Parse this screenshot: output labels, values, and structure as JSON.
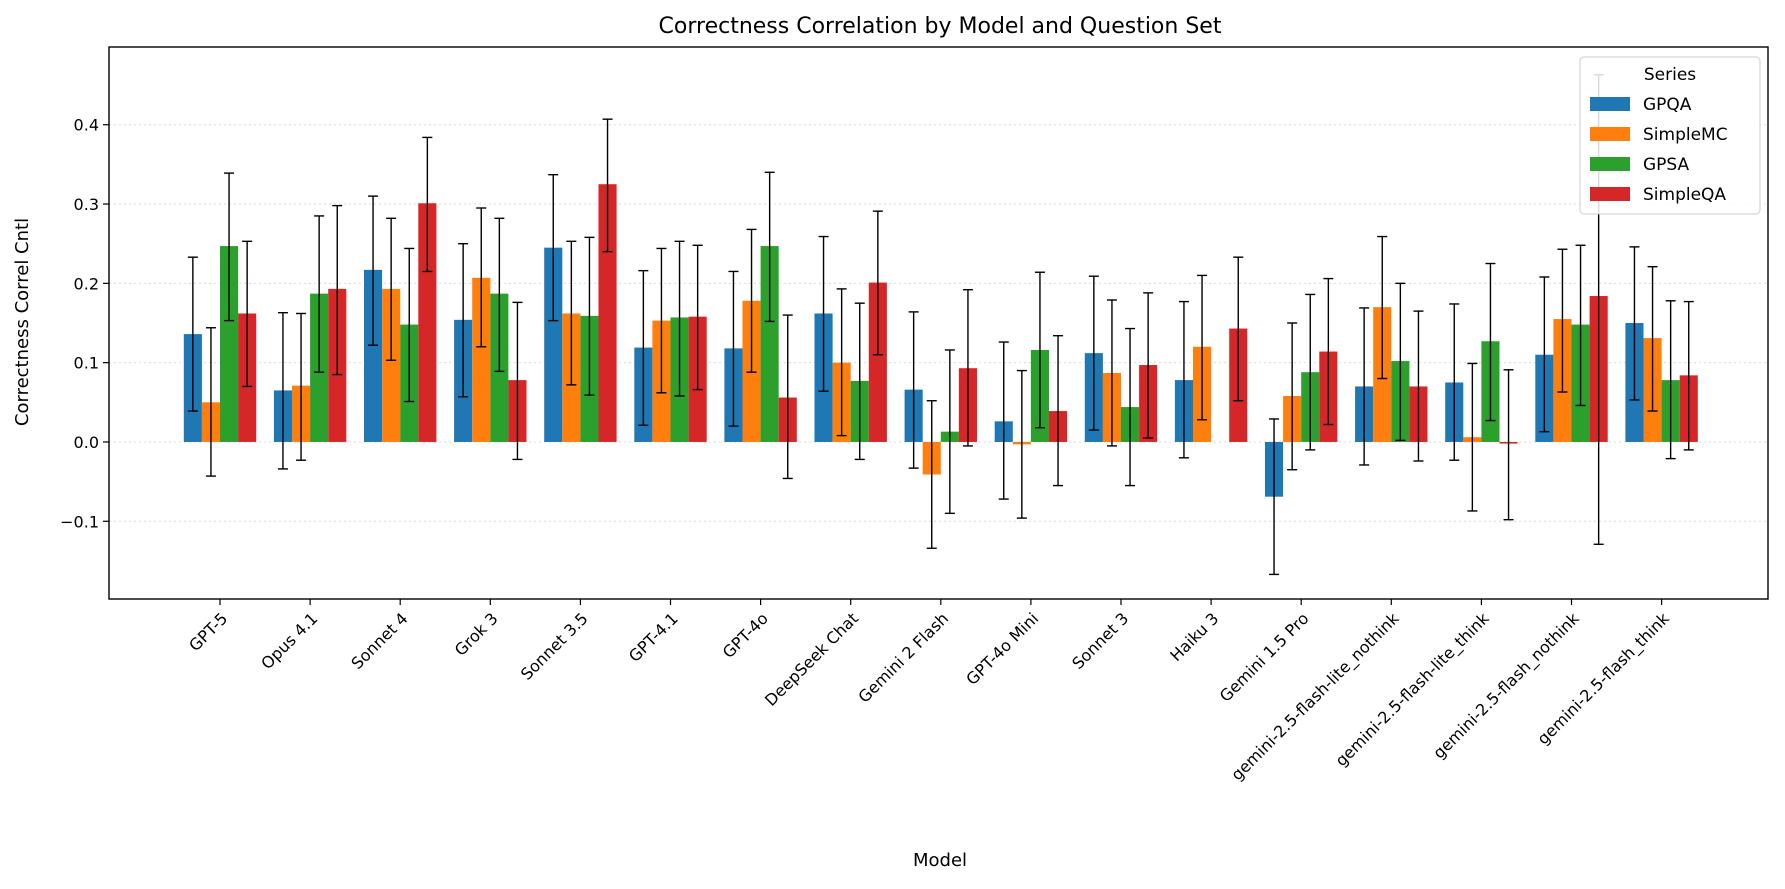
{
  "chart_data": {
    "type": "bar",
    "title": "Correctness Correlation by Model and Question Set",
    "xlabel": "Model",
    "ylabel": "Correctness Correl Cntl",
    "ylim": [
      -0.198,
      0.498
    ],
    "yticks": [
      -0.1,
      0.0,
      0.1,
      0.2,
      0.3,
      0.4
    ],
    "ytick_labels": [
      "−0.1",
      "0.0",
      "0.1",
      "0.2",
      "0.3",
      "0.4"
    ],
    "grid": "y-dotted",
    "legend": {
      "title": "Series",
      "placement": "top-right"
    },
    "categories": [
      "GPT-5",
      "Opus 4.1",
      "Sonnet 4",
      "Grok 3",
      "Sonnet 3.5",
      "GPT-4.1",
      "GPT-4o",
      "DeepSeek Chat",
      "Gemini 2 Flash",
      "GPT-4o Mini",
      "Sonnet 3",
      "Haiku 3",
      "Gemini 1.5 Pro",
      "gemini-2.5-flash-lite_nothink",
      "gemini-2.5-flash-lite_think",
      "gemini-2.5-flash_nothink",
      "gemini-2.5-flash_think"
    ],
    "series": [
      {
        "name": "GPQA",
        "color": "#1f77b4",
        "values": [
          0.136,
          0.065,
          0.217,
          0.154,
          0.245,
          0.119,
          0.118,
          0.162,
          0.066,
          0.026,
          0.112,
          0.078,
          -0.069,
          0.07,
          0.075,
          0.11,
          0.15
        ],
        "err_low": [
          0.039,
          -0.034,
          0.122,
          0.057,
          0.153,
          0.021,
          0.02,
          0.064,
          -0.033,
          -0.072,
          0.015,
          -0.02,
          -0.167,
          -0.029,
          -0.023,
          0.013,
          0.053
        ],
        "err_high": [
          0.233,
          0.163,
          0.31,
          0.25,
          0.337,
          0.216,
          0.215,
          0.259,
          0.164,
          0.126,
          0.209,
          0.177,
          0.029,
          0.169,
          0.174,
          0.208,
          0.246
        ]
      },
      {
        "name": "SimpleMC",
        "color": "#ff7f0e",
        "values": [
          0.05,
          0.071,
          0.193,
          0.207,
          0.162,
          0.153,
          0.178,
          0.1,
          -0.041,
          -0.003,
          0.087,
          0.12,
          0.058,
          0.17,
          0.006,
          0.155,
          0.131
        ],
        "err_low": [
          -0.043,
          -0.023,
          0.103,
          0.12,
          0.072,
          0.062,
          0.088,
          0.008,
          -0.134,
          -0.096,
          -0.005,
          0.028,
          -0.035,
          0.08,
          -0.087,
          0.063,
          0.039
        ],
        "err_high": [
          0.144,
          0.162,
          0.282,
          0.295,
          0.253,
          0.244,
          0.268,
          0.193,
          0.052,
          0.09,
          0.179,
          0.21,
          0.15,
          0.259,
          0.099,
          0.243,
          0.221
        ]
      },
      {
        "name": "GPSA",
        "color": "#2ca02c",
        "values": [
          0.247,
          0.187,
          0.148,
          0.187,
          0.159,
          0.157,
          0.247,
          0.077,
          0.013,
          0.116,
          0.044,
          null,
          0.088,
          0.102,
          0.127,
          0.148,
          0.078
        ],
        "err_low": [
          0.153,
          0.088,
          0.051,
          0.089,
          0.059,
          0.058,
          0.152,
          -0.022,
          -0.09,
          0.018,
          -0.055,
          null,
          -0.01,
          0.002,
          0.027,
          0.046,
          -0.021
        ],
        "err_high": [
          0.339,
          0.285,
          0.244,
          0.282,
          0.258,
          0.253,
          0.34,
          0.175,
          0.116,
          0.214,
          0.143,
          null,
          0.186,
          0.2,
          0.225,
          0.248,
          0.178
        ]
      },
      {
        "name": "SimpleQA",
        "color": "#d62728",
        "values": [
          0.162,
          0.193,
          0.301,
          0.078,
          0.325,
          0.158,
          0.056,
          0.201,
          0.093,
          0.039,
          0.097,
          0.143,
          0.114,
          0.07,
          -0.002,
          0.184,
          0.084
        ],
        "err_low": [
          0.07,
          0.085,
          0.215,
          -0.022,
          0.24,
          0.066,
          -0.046,
          0.11,
          -0.005,
          -0.055,
          0.005,
          0.052,
          0.022,
          -0.024,
          -0.098,
          -0.129,
          -0.01
        ],
        "err_high": [
          0.253,
          0.298,
          0.384,
          0.176,
          0.407,
          0.248,
          0.16,
          0.291,
          0.192,
          0.134,
          0.188,
          0.233,
          0.206,
          0.165,
          0.091,
          0.463,
          0.177
        ]
      }
    ]
  }
}
